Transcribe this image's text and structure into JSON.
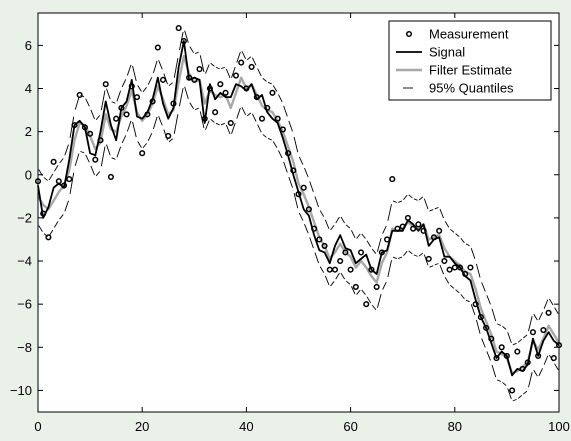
{
  "chart_data": {
    "type": "line",
    "title": "",
    "xlabel": "",
    "ylabel": "",
    "xlim": [
      0,
      100
    ],
    "ylim": [
      -11,
      7.5
    ],
    "xticks": [
      0,
      20,
      40,
      60,
      80,
      100
    ],
    "yticks": [
      -10,
      -8,
      -6,
      -4,
      -2,
      0,
      2,
      4,
      6
    ],
    "grid": false,
    "legend": "top-right",
    "colors": {
      "background": "#e9f1e9",
      "plot_background": "#ffffff",
      "measurement": "#000000",
      "signal": "#000000",
      "filter": "#a8a8a8",
      "quantiles": "#000000"
    },
    "x": [
      0,
      1,
      2,
      3,
      4,
      5,
      6,
      7,
      8,
      9,
      10,
      11,
      12,
      13,
      14,
      15,
      16,
      17,
      18,
      19,
      20,
      21,
      22,
      23,
      24,
      25,
      26,
      27,
      28,
      29,
      30,
      31,
      32,
      33,
      34,
      35,
      36,
      37,
      38,
      39,
      40,
      41,
      42,
      43,
      44,
      45,
      46,
      47,
      48,
      49,
      50,
      51,
      52,
      53,
      54,
      55,
      56,
      57,
      58,
      59,
      60,
      61,
      62,
      63,
      64,
      65,
      66,
      67,
      68,
      69,
      70,
      71,
      72,
      73,
      74,
      75,
      76,
      77,
      78,
      79,
      80,
      81,
      82,
      83,
      84,
      85,
      86,
      87,
      88,
      89,
      90,
      91,
      92,
      93,
      94,
      95,
      96,
      97,
      98,
      99,
      100
    ],
    "series": [
      {
        "name": "Measurement",
        "style": "markers",
        "values": [
          -0.3,
          -1.8,
          -2.9,
          0.6,
          -0.3,
          -0.5,
          -0.2,
          2.3,
          3.7,
          2.2,
          1.9,
          0.7,
          1.6,
          4.2,
          -0.1,
          2.6,
          3.1,
          2.8,
          4.1,
          3.6,
          1.0,
          2.8,
          3.4,
          5.9,
          4.4,
          1.8,
          3.3,
          6.8,
          6.2,
          4.5,
          4.4,
          4.9,
          2.6,
          4.0,
          2.9,
          4.2,
          3.8,
          2.4,
          4.6,
          5.2,
          4.0,
          5.0,
          3.6,
          2.6,
          3.1,
          3.8,
          2.6,
          2.1,
          1.0,
          0.2,
          -0.9,
          -0.6,
          -1.6,
          -2.5,
          -3.0,
          -3.3,
          -4.4,
          -4.4,
          -4.0,
          -3.6,
          -4.4,
          -5.2,
          -3.6,
          -6.0,
          -4.4,
          -5.2,
          -3.6,
          -3.0,
          -0.2,
          -2.5,
          -2.4,
          -2.0,
          -2.5,
          -2.3,
          -2.6,
          -3.9,
          -2.9,
          -2.6,
          -4.0,
          -4.4,
          -4.3,
          -4.3,
          -4.6,
          -4.3,
          -6.0,
          -6.6,
          -7.1,
          -7.6,
          -8.5,
          -8.0,
          -8.4,
          -10.0,
          -8.2,
          -9.0,
          -8.7,
          -7.3,
          -8.4,
          -7.2,
          -6.4,
          -8.5,
          -7.9
        ]
      },
      {
        "name": "Signal",
        "style": "line",
        "values": [
          -0.5,
          -2.0,
          -1.5,
          -0.6,
          -0.4,
          -0.6,
          0.7,
          2.3,
          2.5,
          2.2,
          1.0,
          0.9,
          2.0,
          3.4,
          2.3,
          1.6,
          3.1,
          3.4,
          4.4,
          2.7,
          2.6,
          2.9,
          3.5,
          4.5,
          3.3,
          2.6,
          3.1,
          5.0,
          6.2,
          4.4,
          4.5,
          4.4,
          2.4,
          4.2,
          3.5,
          3.8,
          3.6,
          3.6,
          4.2,
          4.1,
          3.9,
          4.2,
          3.5,
          3.7,
          2.9,
          2.6,
          2.4,
          1.7,
          0.9,
          0.0,
          -0.8,
          -1.6,
          -1.9,
          -2.8,
          -3.5,
          -3.6,
          -4.1,
          -3.3,
          -2.8,
          -3.4,
          -3.5,
          -4.1,
          -3.9,
          -3.7,
          -4.4,
          -4.6,
          -3.6,
          -3.5,
          -2.6,
          -2.6,
          -2.6,
          -2.1,
          -2.3,
          -2.6,
          -2.3,
          -3.3,
          -3.0,
          -2.9,
          -3.8,
          -3.8,
          -4.1,
          -4.3,
          -4.7,
          -4.9,
          -5.8,
          -6.6,
          -7.1,
          -7.8,
          -8.5,
          -8.2,
          -8.4,
          -9.3,
          -9.0,
          -9.1,
          -8.8,
          -7.6,
          -8.4,
          -7.7,
          -7.3,
          -7.7,
          -7.9
        ]
      },
      {
        "name": "Filter Estimate",
        "style": "line",
        "values": [
          -1.0,
          -1.4,
          -1.6,
          -1.2,
          -0.8,
          -0.5,
          0.2,
          1.6,
          2.4,
          2.3,
          1.8,
          1.2,
          1.5,
          2.8,
          2.1,
          2.0,
          2.7,
          3.2,
          3.9,
          2.9,
          2.5,
          2.8,
          3.3,
          4.1,
          3.5,
          2.8,
          3.0,
          4.3,
          5.5,
          4.7,
          4.3,
          4.4,
          3.3,
          3.9,
          3.7,
          3.6,
          3.7,
          3.1,
          3.8,
          4.5,
          4.0,
          4.2,
          3.7,
          3.2,
          3.0,
          2.9,
          2.5,
          2.0,
          1.3,
          0.6,
          -0.4,
          -0.9,
          -1.5,
          -2.2,
          -2.9,
          -3.3,
          -3.9,
          -3.6,
          -3.2,
          -3.6,
          -3.8,
          -4.3,
          -4.0,
          -4.3,
          -4.7,
          -5.0,
          -4.1,
          -3.6,
          -2.5,
          -2.6,
          -2.5,
          -2.2,
          -2.4,
          -2.5,
          -2.3,
          -3.0,
          -2.9,
          -2.8,
          -3.4,
          -3.8,
          -4.0,
          -4.2,
          -4.5,
          -4.6,
          -5.3,
          -6.2,
          -6.8,
          -7.4,
          -8.2,
          -8.3,
          -8.5,
          -9.2,
          -9.1,
          -8.9,
          -8.7,
          -7.7,
          -8.1,
          -7.6,
          -7.0,
          -7.4,
          -7.8
        ]
      }
    ],
    "quantile_band": {
      "name": "95% Quantiles",
      "style": "dashed-segments",
      "half_width": 1.3,
      "center": "Filter Estimate"
    }
  }
}
